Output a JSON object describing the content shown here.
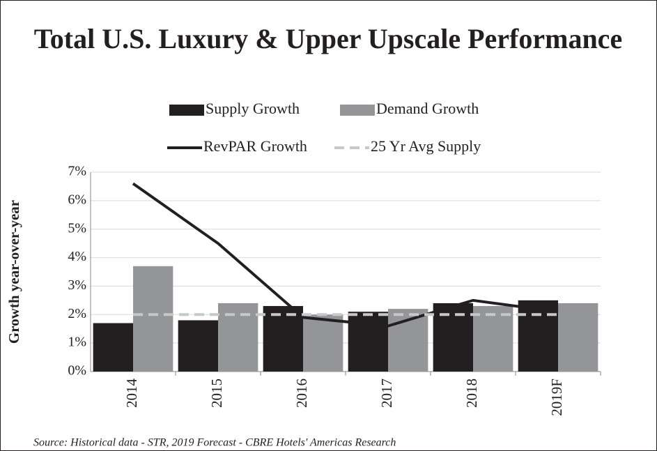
{
  "chart_data": {
    "type": "bar",
    "title": "Total U.S. Luxury & Upper Upscale Performance",
    "y_label": "Growth year-over-year",
    "source": "Source: Historical data - STR, 2019 Forecast - CBRE Hotels' Americas Research",
    "categories": [
      "2014",
      "2015",
      "2016",
      "2017",
      "2018",
      "2019F"
    ],
    "series": [
      {
        "name": "Supply Growth",
        "type": "bar",
        "color": "#231f20",
        "values": [
          1.7,
          1.8,
          2.3,
          2.1,
          2.4,
          2.5
        ]
      },
      {
        "name": "Demand Growth",
        "type": "bar",
        "color": "#939598",
        "values": [
          3.7,
          2.4,
          2.0,
          2.2,
          2.3,
          2.4
        ]
      },
      {
        "name": "RevPAR Growth",
        "type": "line",
        "color": "#231f20",
        "values": [
          6.6,
          4.5,
          1.9,
          1.6,
          2.5,
          2.1
        ]
      },
      {
        "name": "25 Yr Avg Supply",
        "type": "line",
        "color": "#c7c8ca",
        "dashed": true,
        "values": [
          2.0,
          2.0,
          2.0,
          2.0,
          2.0,
          2.0
        ]
      }
    ],
    "ylim": [
      0,
      7
    ],
    "yticks": [
      {
        "value": 0,
        "label": "0%"
      },
      {
        "value": 1,
        "label": "1%"
      },
      {
        "value": 2,
        "label": "2%"
      },
      {
        "value": 3,
        "label": "3%"
      },
      {
        "value": 4,
        "label": "4%"
      },
      {
        "value": 5,
        "label": "5%"
      },
      {
        "value": 6,
        "label": "6%"
      },
      {
        "value": 7,
        "label": "7%"
      }
    ],
    "grid": true
  }
}
